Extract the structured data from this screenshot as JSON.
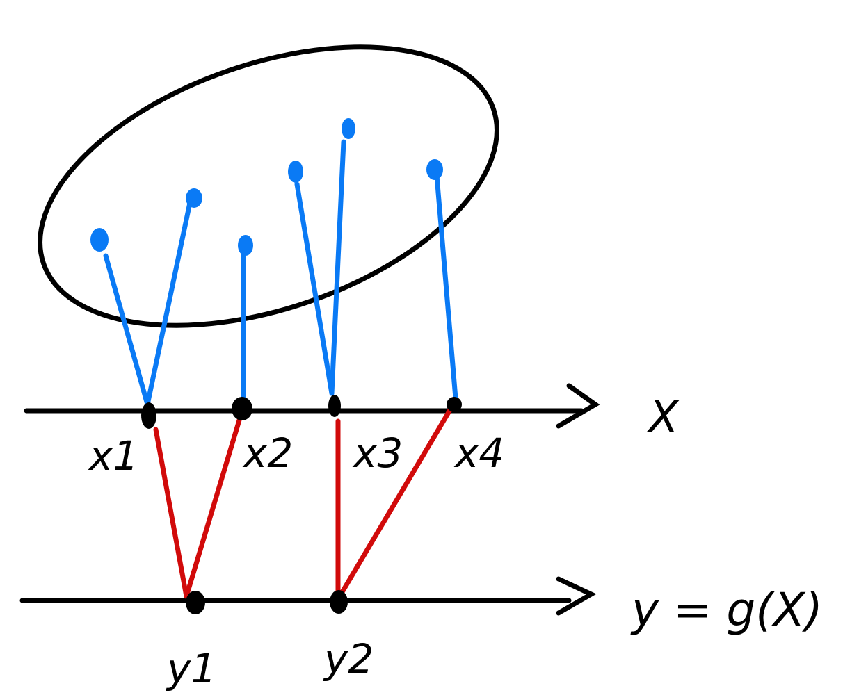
{
  "diagram": {
    "colors": {
      "stroke": "#000000",
      "blue": "#0a7af5",
      "red": "#d10a0a",
      "background": "#ffffff"
    },
    "x_axis_label": "X",
    "y_axis_label": "y = g(X)",
    "x_points": [
      {
        "label": "x1",
        "id": "x1"
      },
      {
        "label": "x2",
        "id": "x2"
      },
      {
        "label": "x3",
        "id": "x3"
      },
      {
        "label": "x4",
        "id": "x4"
      }
    ],
    "y_points": [
      {
        "label": "y1",
        "id": "y1"
      },
      {
        "label": "y2",
        "id": "y2"
      }
    ],
    "sample_points_count": 6,
    "mapping_x_to_y": {
      "x1": "y1",
      "x2": "y1",
      "x3": "y2",
      "x4": "y2"
    }
  }
}
